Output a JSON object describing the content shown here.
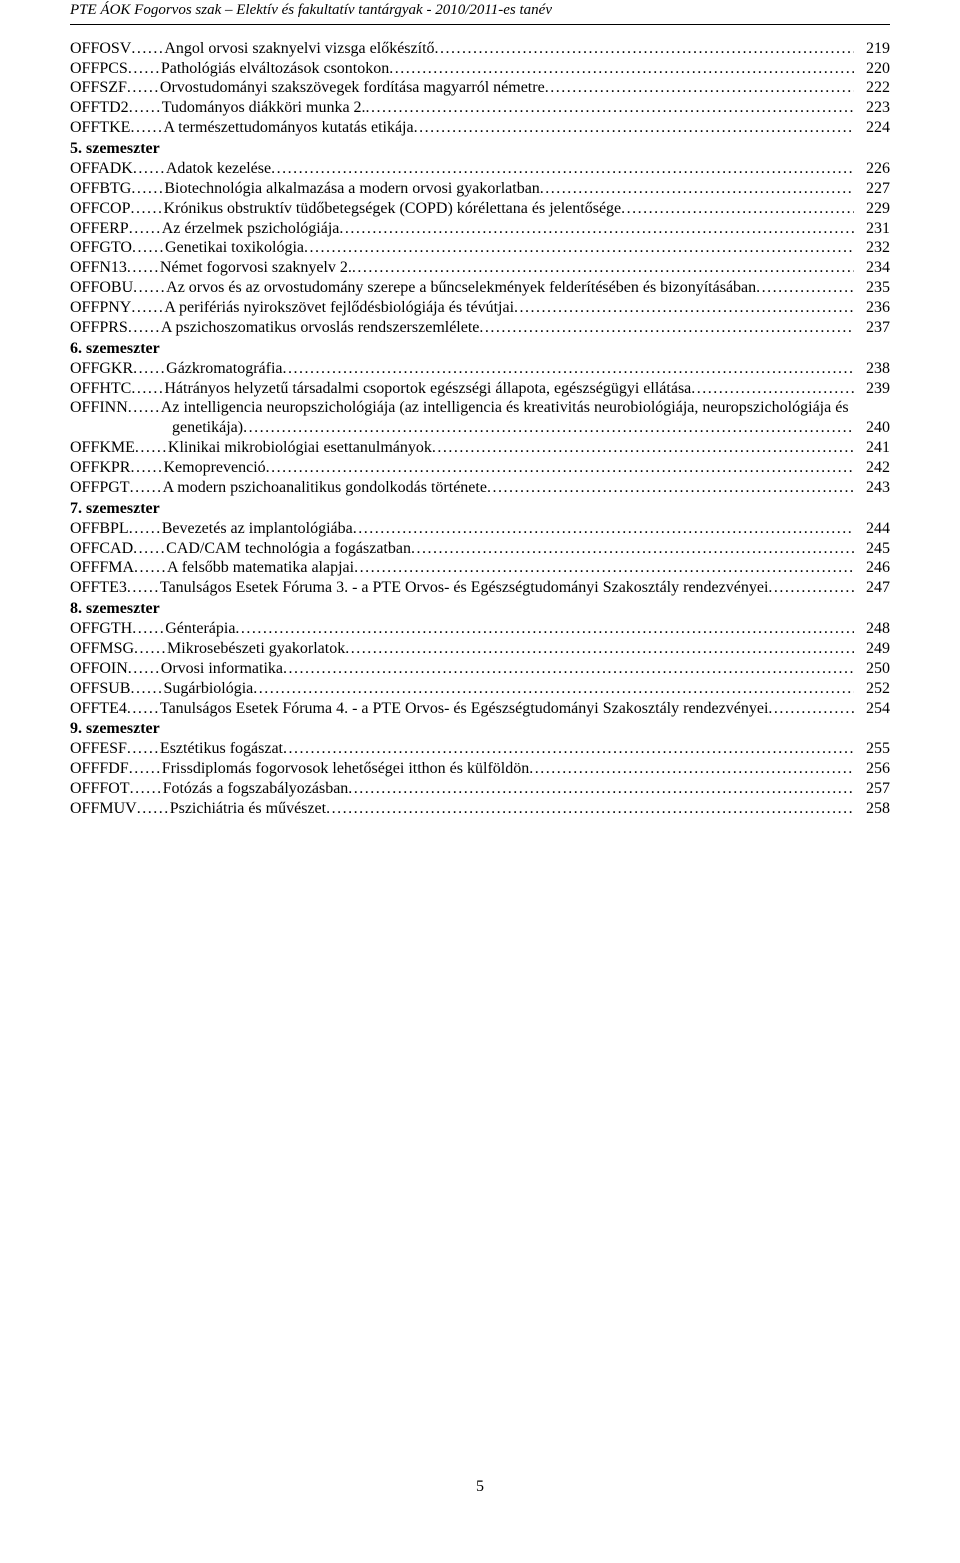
{
  "header": "PTE ÁOK Fogorvos szak – Elektív és fakultatív tantárgyak  - 2010/2011-es tanév",
  "page_number": "5",
  "leader_segment": "......",
  "entries": [
    {
      "code": "OFFOSV",
      "title": "Angol orvosi szaknyelvi vizsga előkészítő",
      "page": "219"
    },
    {
      "code": "OFFPCS",
      "title": "Pathológiás elváltozások csontokon",
      "page": "220"
    },
    {
      "code": "OFFSZF",
      "title": "Orvostudományi szakszövegek fordítása magyarról németre",
      "page": "222"
    },
    {
      "code": "OFFTD2",
      "title": "Tudományos diákköri munka 2.",
      "page": "223"
    },
    {
      "code": "OFFTKE",
      "title": "A természettudományos kutatás etikája",
      "page": "224"
    },
    {
      "section": "5. szemeszter"
    },
    {
      "code": "OFFADK",
      "title": "Adatok kezelése",
      "page": "226"
    },
    {
      "code": "OFFBTG",
      "title": "Biotechnológia alkalmazása a modern orvosi gyakorlatban",
      "page": "227"
    },
    {
      "code": "OFFCOP",
      "title": "Krónikus obstruktív tüdőbetegségek (COPD) kórélettana és jelentősége",
      "page": "229"
    },
    {
      "code": "OFFERP",
      "title": "Az érzelmek pszichológiája",
      "page": "231"
    },
    {
      "code": "OFFGTO",
      "title": "Genetikai toxikológia",
      "page": "232"
    },
    {
      "code": "OFFN13",
      "title": "Német fogorvosi szaknyelv 2.",
      "page": "234"
    },
    {
      "code": "OFFOBU",
      "title": "Az orvos és az orvostudomány szerepe a bűncselekmények felderítésében és bizonyításában",
      "page": "235"
    },
    {
      "code": "OFFPNY",
      "title": "A perifériás nyirokszövet fejlődésbiológiája és tévútjai",
      "page": "236"
    },
    {
      "code": "OFFPRS",
      "title": "A pszichoszomatikus orvoslás rendszerszemlélete",
      "page": "237"
    },
    {
      "section": "6. szemeszter"
    },
    {
      "code": "OFFGKR",
      "title": "Gázkromatográfia",
      "page": "238"
    },
    {
      "code": "OFFHTC",
      "title": "Hátrányos helyzetű társadalmi csoportok egészségi állapota, egészségügyi ellátása",
      "page": "239"
    },
    {
      "code": "OFFINN",
      "title_pre": "Az intelligencia neuropszichológiája (az intelligencia és kreativitás neurobiológiája, neuropszichológiája és",
      "title_cont": "genetikája)",
      "page": "240",
      "wrap": true
    },
    {
      "code": "OFFKME",
      "title": "Klinikai mikrobiológiai esettanulmányok",
      "page": "241"
    },
    {
      "code": "OFFKPR",
      "title": "Kemoprevenció",
      "page": "242"
    },
    {
      "code": "OFFPGT",
      "title": "A modern pszichoanalitikus gondolkodás története",
      "page": "243"
    },
    {
      "section": "7. szemeszter"
    },
    {
      "code": "OFFBPL",
      "title": "Bevezetés az implantológiába",
      "page": "244"
    },
    {
      "code": "OFFCAD",
      "title": "CAD/CAM technológia a fogászatban",
      "page": "245"
    },
    {
      "code": "OFFFMA",
      "title": "A felsőbb matematika alapjai",
      "page": "246"
    },
    {
      "code": "OFFTE3",
      "title": "Tanulságos Esetek Fóruma 3. - a PTE Orvos- és Egészségtudományi Szakosztály rendezvényei",
      "page": "247"
    },
    {
      "section": "8. szemeszter"
    },
    {
      "code": "OFFGTH",
      "title": "Génterápia",
      "page": "248"
    },
    {
      "code": "OFFMSG",
      "title": "Mikrosebészeti gyakorlatok",
      "page": "249"
    },
    {
      "code": "OFFOIN",
      "title": "Orvosi informatika",
      "page": "250"
    },
    {
      "code": "OFFSUB",
      "title": "Sugárbiológia",
      "page": "252"
    },
    {
      "code": "OFFTE4",
      "title": "Tanulságos Esetek Fóruma 4. - a PTE Orvos- és Egészségtudományi Szakosztály rendezvényei",
      "page": "254"
    },
    {
      "section": "9. szemeszter"
    },
    {
      "code": "OFFESF",
      "title": "Esztétikus fogászat",
      "page": "255"
    },
    {
      "code": "OFFFDF",
      "title": "Frissdiplomás fogorvosok lehetőségei itthon és külföldön",
      "page": "256"
    },
    {
      "code": "OFFFOT",
      "title": "Fotózás a fogszabályozásban",
      "page": "257"
    },
    {
      "code": "OFFMUV",
      "title": "Pszichiátria és művészet",
      "page": "258"
    }
  ]
}
